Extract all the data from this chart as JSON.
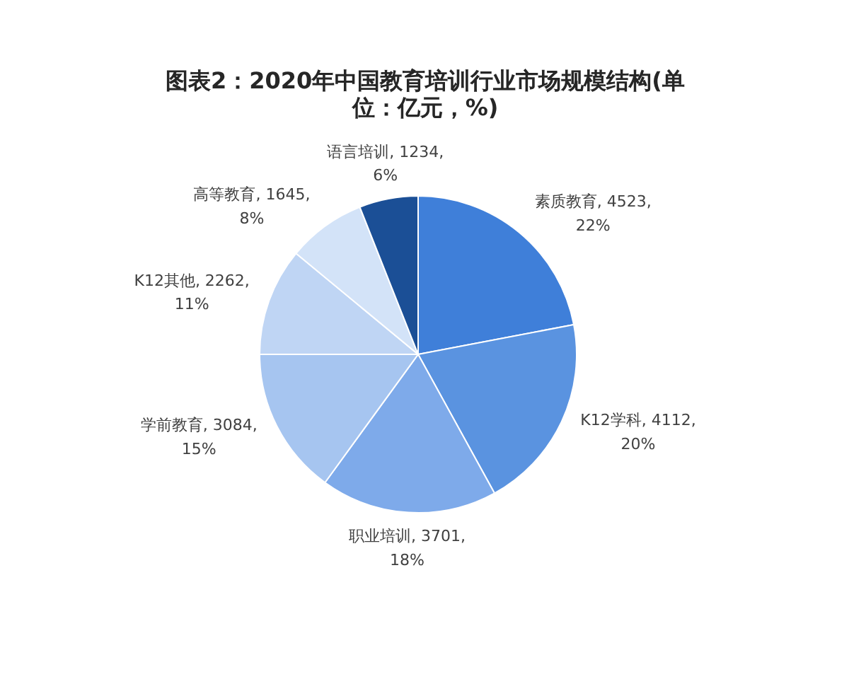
{
  "chart_data": {
    "type": "pie",
    "title": "图表2：2020年中国教育培训行业市场规模结构(单位：亿元，%)",
    "categories": [
      "素质教育",
      "K12学科",
      "职业培训",
      "学前教育",
      "K12其他",
      "高等教育",
      "语言培训"
    ],
    "values": [
      4523,
      4112,
      3701,
      3084,
      2262,
      1645,
      1234
    ],
    "colors": [
      "#3f7fd9",
      "#5a93e0",
      "#7eaaea",
      "#a6c5f0",
      "#bfd5f4",
      "#d3e3f8",
      "#1b4f96"
    ],
    "value_labels": [
      "4523, 22%",
      "4112, 20%",
      "3701, 18%",
      "3084, 15%",
      "2262, 11%",
      "1645, 8%",
      "1234, 6%"
    ]
  }
}
